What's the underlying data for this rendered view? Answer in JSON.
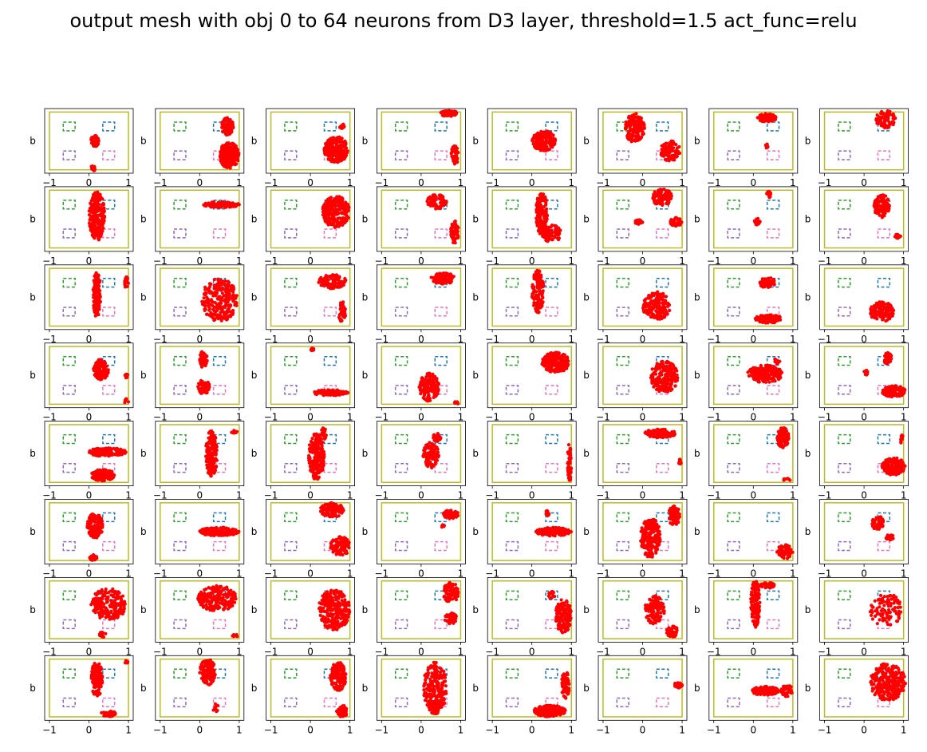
{
  "chart_data": {
    "type": "scatter",
    "title": "output mesh with obj 0 to 64 neurons from D3 layer, threshold=1.5 act_func=relu",
    "rows": 8,
    "cols": 8,
    "ylabel": "b",
    "xlim": [
      -1.12,
      1.12
    ],
    "ylim": [
      -1.12,
      1.12
    ],
    "xticks": [
      "−1",
      "0",
      "1"
    ],
    "point_color": "#ff0000",
    "boundary": {
      "x": [
        -1,
        1
      ],
      "y": [
        -1,
        1
      ],
      "color": "#bcbd22"
    },
    "regions": [
      {
        "name": "top-left",
        "x": [
          -0.65,
          -0.35
        ],
        "y": [
          0.35,
          0.65
        ],
        "color": "#2ca02c"
      },
      {
        "name": "top-right",
        "x": [
          0.35,
          0.65
        ],
        "y": [
          0.35,
          0.65
        ],
        "color": "#1f77b4"
      },
      {
        "name": "bottom-left",
        "x": [
          -0.65,
          -0.35
        ],
        "y": [
          -0.65,
          -0.35
        ],
        "color": "#9467bd"
      },
      {
        "name": "bottom-right",
        "x": [
          0.35,
          0.65
        ],
        "y": [
          -0.65,
          -0.35
        ],
        "color": "#e377c2"
      }
    ],
    "panels": [
      {
        "neuron": 0,
        "clusters": [
          [
            0.15,
            0.0,
            0.1,
            0.2,
            80
          ],
          [
            0.1,
            -0.95,
            0.06,
            0.1,
            20
          ]
        ]
      },
      {
        "neuron": 1,
        "clusters": [
          [
            0.7,
            0.5,
            0.15,
            0.3,
            120
          ],
          [
            0.75,
            -0.5,
            0.25,
            0.45,
            220
          ]
        ]
      },
      {
        "neuron": 2,
        "clusters": [
          [
            0.65,
            -0.3,
            0.3,
            0.45,
            220
          ],
          [
            0.8,
            0.5,
            0.06,
            0.1,
            15
          ]
        ]
      },
      {
        "neuron": 3,
        "clusters": [
          [
            0.7,
            0.95,
            0.22,
            0.1,
            110
          ],
          [
            0.85,
            -0.5,
            0.1,
            0.35,
            40
          ]
        ]
      },
      {
        "neuron": 4,
        "clusters": [
          [
            0.3,
            0.0,
            0.3,
            0.35,
            160
          ]
        ]
      },
      {
        "neuron": 5,
        "clusters": [
          [
            -0.2,
            0.45,
            0.25,
            0.5,
            160
          ],
          [
            0.7,
            -0.35,
            0.25,
            0.35,
            90
          ]
        ]
      },
      {
        "neuron": 6,
        "clusters": [
          [
            0.35,
            0.8,
            0.25,
            0.15,
            80
          ],
          [
            0.35,
            -0.2,
            0.05,
            0.1,
            10
          ]
        ]
      },
      {
        "neuron": 7,
        "clusters": [
          [
            0.55,
            0.75,
            0.25,
            0.3,
            80
          ]
        ]
      },
      {
        "neuron": 8,
        "clusters": [
          [
            0.2,
            0.1,
            0.2,
            0.85,
            230
          ]
        ]
      },
      {
        "neuron": 9,
        "clusters": [
          [
            0.55,
            0.5,
            0.45,
            0.1,
            140
          ]
        ]
      },
      {
        "neuron": 10,
        "clusters": [
          [
            0.65,
            0.25,
            0.35,
            0.55,
            260
          ]
        ]
      },
      {
        "neuron": 11,
        "clusters": [
          [
            0.4,
            0.6,
            0.25,
            0.25,
            80
          ],
          [
            0.85,
            -0.45,
            0.1,
            0.4,
            60
          ]
        ]
      },
      {
        "neuron": 12,
        "clusters": [
          [
            0.25,
            0.2,
            0.15,
            0.75,
            150
          ],
          [
            0.5,
            -0.5,
            0.25,
            0.3,
            90
          ]
        ]
      },
      {
        "neuron": 13,
        "clusters": [
          [
            0.5,
            0.75,
            0.25,
            0.3,
            100
          ],
          [
            0.85,
            -0.1,
            0.15,
            0.15,
            60
          ],
          [
            -0.1,
            -0.1,
            0.1,
            0.08,
            20
          ]
        ]
      },
      {
        "neuron": 14,
        "clusters": [
          [
            0.4,
            0.85,
            0.06,
            0.12,
            15
          ],
          [
            0.1,
            -0.1,
            0.08,
            0.12,
            20
          ]
        ]
      },
      {
        "neuron": 15,
        "clusters": [
          [
            0.45,
            0.45,
            0.2,
            0.4,
            120
          ],
          [
            0.85,
            -0.6,
            0.08,
            0.1,
            15
          ]
        ]
      },
      {
        "neuron": 16,
        "clusters": [
          [
            0.2,
            0.1,
            0.1,
            0.8,
            140
          ],
          [
            0.95,
            0.5,
            0.05,
            0.2,
            20
          ]
        ]
      },
      {
        "neuron": 17,
        "clusters": [
          [
            0.5,
            -0.1,
            0.45,
            0.75,
            250
          ]
        ]
      },
      {
        "neuron": 18,
        "clusters": [
          [
            0.55,
            0.55,
            0.35,
            0.25,
            110
          ],
          [
            0.8,
            -0.5,
            0.1,
            0.35,
            40
          ]
        ]
      },
      {
        "neuron": 19,
        "clusters": [
          [
            0.55,
            0.65,
            0.3,
            0.2,
            110
          ]
        ]
      },
      {
        "neuron": 20,
        "clusters": [
          [
            0.15,
            0.2,
            0.15,
            0.75,
            140
          ]
        ]
      },
      {
        "neuron": 21,
        "clusters": [
          [
            0.35,
            -0.3,
            0.35,
            0.5,
            150
          ]
        ]
      },
      {
        "neuron": 22,
        "clusters": [
          [
            0.35,
            0.5,
            0.2,
            0.2,
            80
          ],
          [
            0.4,
            -0.75,
            0.35,
            0.15,
            120
          ]
        ]
      },
      {
        "neuron": 23,
        "clusters": [
          [
            0.45,
            -0.5,
            0.3,
            0.35,
            140
          ]
        ]
      },
      {
        "neuron": 24,
        "clusters": [
          [
            0.3,
            0.2,
            0.2,
            0.35,
            110
          ],
          [
            0.95,
            0.0,
            0.05,
            0.1,
            10
          ],
          [
            0.95,
            -0.9,
            0.05,
            0.1,
            10
          ]
        ]
      },
      {
        "neuron": 25,
        "clusters": [
          [
            0.1,
            0.55,
            0.1,
            0.3,
            60
          ],
          [
            0.1,
            -0.4,
            0.15,
            0.25,
            60
          ]
        ]
      },
      {
        "neuron": 26,
        "clusters": [
          [
            0.05,
            0.9,
            0.05,
            0.05,
            15
          ],
          [
            0.5,
            -0.6,
            0.45,
            0.1,
            110
          ]
        ]
      },
      {
        "neuron": 27,
        "clusters": [
          [
            0.2,
            -0.4,
            0.25,
            0.5,
            150
          ],
          [
            0.9,
            -0.95,
            0.06,
            0.05,
            10
          ]
        ]
      },
      {
        "neuron": 28,
        "clusters": [
          [
            0.6,
            0.45,
            0.35,
            0.35,
            200
          ]
        ]
      },
      {
        "neuron": 29,
        "clusters": [
          [
            0.55,
            -0.05,
            0.35,
            0.55,
            220
          ]
        ]
      },
      {
        "neuron": 30,
        "clusters": [
          [
            0.3,
            0.05,
            0.45,
            0.3,
            200
          ],
          [
            0.6,
            0.5,
            0.08,
            0.1,
            10
          ]
        ]
      },
      {
        "neuron": 31,
        "clusters": [
          [
            0.75,
            -0.55,
            0.3,
            0.2,
            110
          ],
          [
            0.6,
            0.55,
            0.1,
            0.25,
            30
          ],
          [
            0.05,
            0.1,
            0.05,
            0.1,
            8
          ]
        ]
      },
      {
        "neuron": 32,
        "clusters": [
          [
            0.45,
            0.05,
            0.5,
            0.15,
            150
          ],
          [
            0.35,
            -0.75,
            0.3,
            0.2,
            120
          ]
        ]
      },
      {
        "neuron": 33,
        "clusters": [
          [
            0.3,
            0.0,
            0.15,
            0.8,
            170
          ],
          [
            0.85,
            0.75,
            0.1,
            0.05,
            15
          ]
        ]
      },
      {
        "neuron": 34,
        "clusters": [
          [
            0.15,
            -0.1,
            0.2,
            0.8,
            200
          ],
          [
            0.35,
            0.7,
            0.08,
            0.2,
            20
          ]
        ]
      },
      {
        "neuron": 35,
        "clusters": [
          [
            0.25,
            -0.05,
            0.2,
            0.45,
            120
          ],
          [
            0.4,
            0.55,
            0.1,
            0.15,
            40
          ]
        ]
      },
      {
        "neuron": 36,
        "clusters": [
          [
            0.95,
            -0.3,
            0.05,
            0.7,
            60
          ]
        ]
      },
      {
        "neuron": 37,
        "clusters": [
          [
            0.45,
            0.7,
            0.4,
            0.15,
            120
          ],
          [
            0.95,
            -0.3,
            0.05,
            0.1,
            10
          ]
        ]
      },
      {
        "neuron": 38,
        "clusters": [
          [
            0.75,
            0.55,
            0.15,
            0.35,
            120
          ],
          [
            0.85,
            -0.9,
            0.1,
            0.05,
            8
          ]
        ]
      },
      {
        "neuron": 39,
        "clusters": [
          [
            0.75,
            -0.45,
            0.3,
            0.3,
            150
          ],
          [
            0.95,
            0.5,
            0.05,
            0.15,
            10
          ]
        ]
      },
      {
        "neuron": 40,
        "clusters": [
          [
            0.15,
            0.2,
            0.2,
            0.45,
            140
          ],
          [
            0.1,
            -0.9,
            0.1,
            0.1,
            30
          ]
        ]
      },
      {
        "neuron": 41,
        "clusters": [
          [
            0.5,
            0.0,
            0.5,
            0.15,
            180
          ]
        ]
      },
      {
        "neuron": 42,
        "clusters": [
          [
            0.55,
            0.75,
            0.3,
            0.25,
            120
          ],
          [
            0.75,
            -0.5,
            0.25,
            0.35,
            100
          ]
        ]
      },
      {
        "neuron": 43,
        "clusters": [
          [
            0.75,
            0.6,
            0.2,
            0.15,
            60
          ],
          [
            0.55,
            0.2,
            0.05,
            0.05,
            8
          ]
        ]
      },
      {
        "neuron": 44,
        "clusters": [
          [
            0.55,
            0.0,
            0.45,
            0.15,
            150
          ],
          [
            0.4,
            0.65,
            0.05,
            0.1,
            10
          ]
        ]
      },
      {
        "neuron": 45,
        "clusters": [
          [
            0.2,
            -0.2,
            0.25,
            0.7,
            220
          ],
          [
            0.8,
            0.55,
            0.15,
            0.35,
            90
          ]
        ]
      },
      {
        "neuron": 46,
        "clusters": [
          [
            0.8,
            -0.7,
            0.2,
            0.25,
            60
          ]
        ]
      },
      {
        "neuron": 47,
        "clusters": [
          [
            0.35,
            0.3,
            0.15,
            0.25,
            60
          ],
          [
            0.65,
            -0.2,
            0.1,
            0.1,
            30
          ]
        ]
      },
      {
        "neuron": 48,
        "clusters": [
          [
            0.5,
            0.2,
            0.45,
            0.55,
            200
          ],
          [
            0.35,
            -0.85,
            0.1,
            0.1,
            20
          ]
        ]
      },
      {
        "neuron": 49,
        "clusters": [
          [
            0.45,
            0.4,
            0.5,
            0.45,
            220
          ],
          [
            0.9,
            -0.9,
            0.08,
            0.05,
            10
          ]
        ]
      },
      {
        "neuron": 50,
        "clusters": [
          [
            0.6,
            0.0,
            0.4,
            0.7,
            280
          ]
        ]
      },
      {
        "neuron": 51,
        "clusters": [
          [
            0.75,
            0.6,
            0.2,
            0.35,
            80
          ],
          [
            0.75,
            -0.3,
            0.15,
            0.2,
            60
          ]
        ]
      },
      {
        "neuron": 52,
        "clusters": [
          [
            0.8,
            -0.2,
            0.2,
            0.6,
            150
          ],
          [
            0.5,
            0.5,
            0.08,
            0.15,
            15
          ]
        ]
      },
      {
        "neuron": 53,
        "clusters": [
          [
            0.3,
            0.0,
            0.25,
            0.5,
            120
          ],
          [
            0.75,
            -0.75,
            0.15,
            0.2,
            60
          ]
        ]
      },
      {
        "neuron": 54,
        "clusters": [
          [
            0.05,
            0.2,
            0.12,
            0.8,
            130
          ],
          [
            0.35,
            0.85,
            0.2,
            0.1,
            40
          ]
        ]
      },
      {
        "neuron": 55,
        "clusters": [
          [
            0.55,
            0.0,
            0.4,
            0.6,
            100
          ]
        ]
      },
      {
        "neuron": 56,
        "clusters": [
          [
            0.2,
            0.3,
            0.15,
            0.6,
            130
          ],
          [
            0.5,
            -0.9,
            0.2,
            0.1,
            40
          ],
          [
            0.95,
            0.9,
            0.05,
            0.05,
            8
          ]
        ]
      },
      {
        "neuron": 57,
        "clusters": [
          [
            0.2,
            0.55,
            0.2,
            0.45,
            160
          ],
          [
            0.4,
            -0.7,
            0.08,
            0.15,
            10
          ]
        ]
      },
      {
        "neuron": 58,
        "clusters": [
          [
            0.7,
            0.4,
            0.2,
            0.5,
            140
          ],
          [
            0.8,
            -0.8,
            0.15,
            0.2,
            50
          ]
        ]
      },
      {
        "neuron": 59,
        "clusters": [
          [
            0.35,
            0.0,
            0.3,
            0.9,
            240
          ]
        ]
      },
      {
        "neuron": 60,
        "clusters": [
          [
            0.45,
            -0.8,
            0.4,
            0.2,
            200
          ],
          [
            0.85,
            0.1,
            0.1,
            0.5,
            60
          ]
        ]
      },
      {
        "neuron": 61,
        "clusters": [
          [
            0.9,
            0.1,
            0.1,
            0.1,
            40
          ]
        ]
      },
      {
        "neuron": 62,
        "clusters": [
          [
            0.3,
            -0.1,
            0.35,
            0.15,
            140
          ],
          [
            0.85,
            -0.1,
            0.15,
            0.2,
            50
          ]
        ]
      },
      {
        "neuron": 63,
        "clusters": [
          [
            0.6,
            0.2,
            0.45,
            0.65,
            280
          ]
        ]
      }
    ]
  }
}
